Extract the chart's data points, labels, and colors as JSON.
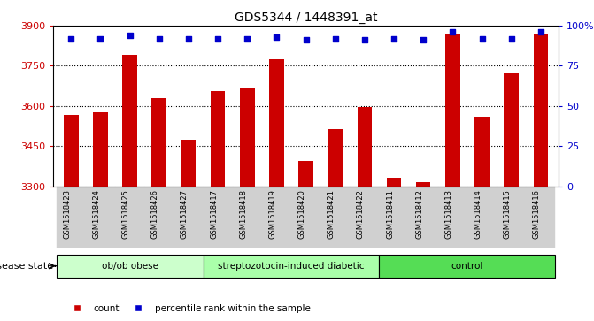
{
  "title": "GDS5344 / 1448391_at",
  "samples": [
    "GSM1518423",
    "GSM1518424",
    "GSM1518425",
    "GSM1518426",
    "GSM1518427",
    "GSM1518417",
    "GSM1518418",
    "GSM1518419",
    "GSM1518420",
    "GSM1518421",
    "GSM1518422",
    "GSM1518411",
    "GSM1518412",
    "GSM1518413",
    "GSM1518414",
    "GSM1518415",
    "GSM1518416"
  ],
  "counts": [
    3565,
    3575,
    3790,
    3630,
    3475,
    3655,
    3670,
    3775,
    3395,
    3515,
    3595,
    3330,
    3315,
    3870,
    3560,
    3720,
    3870
  ],
  "percentiles": [
    92,
    92,
    94,
    92,
    92,
    92,
    92,
    93,
    91,
    92,
    91,
    92,
    91,
    96,
    92,
    92,
    96
  ],
  "groups": [
    {
      "label": "ob/ob obese",
      "start": 0,
      "end": 5
    },
    {
      "label": "streptozotocin-induced diabetic",
      "start": 5,
      "end": 11
    },
    {
      "label": "control",
      "start": 11,
      "end": 17
    }
  ],
  "group_colors": [
    "#ccffcc",
    "#aaffaa",
    "#55dd55"
  ],
  "ylim_left": [
    3300,
    3900
  ],
  "ylim_right": [
    0,
    100
  ],
  "bar_color": "#cc0000",
  "dot_color": "#0000cc",
  "tick_color_left": "#cc0000",
  "tick_color_right": "#0000cc",
  "bar_width": 0.5,
  "ybase": 3300,
  "left_ticks": [
    3300,
    3450,
    3600,
    3750,
    3900
  ],
  "right_ticks": [
    0,
    25,
    50,
    75,
    100
  ],
  "grid_ticks": [
    3450,
    3600,
    3750
  ]
}
